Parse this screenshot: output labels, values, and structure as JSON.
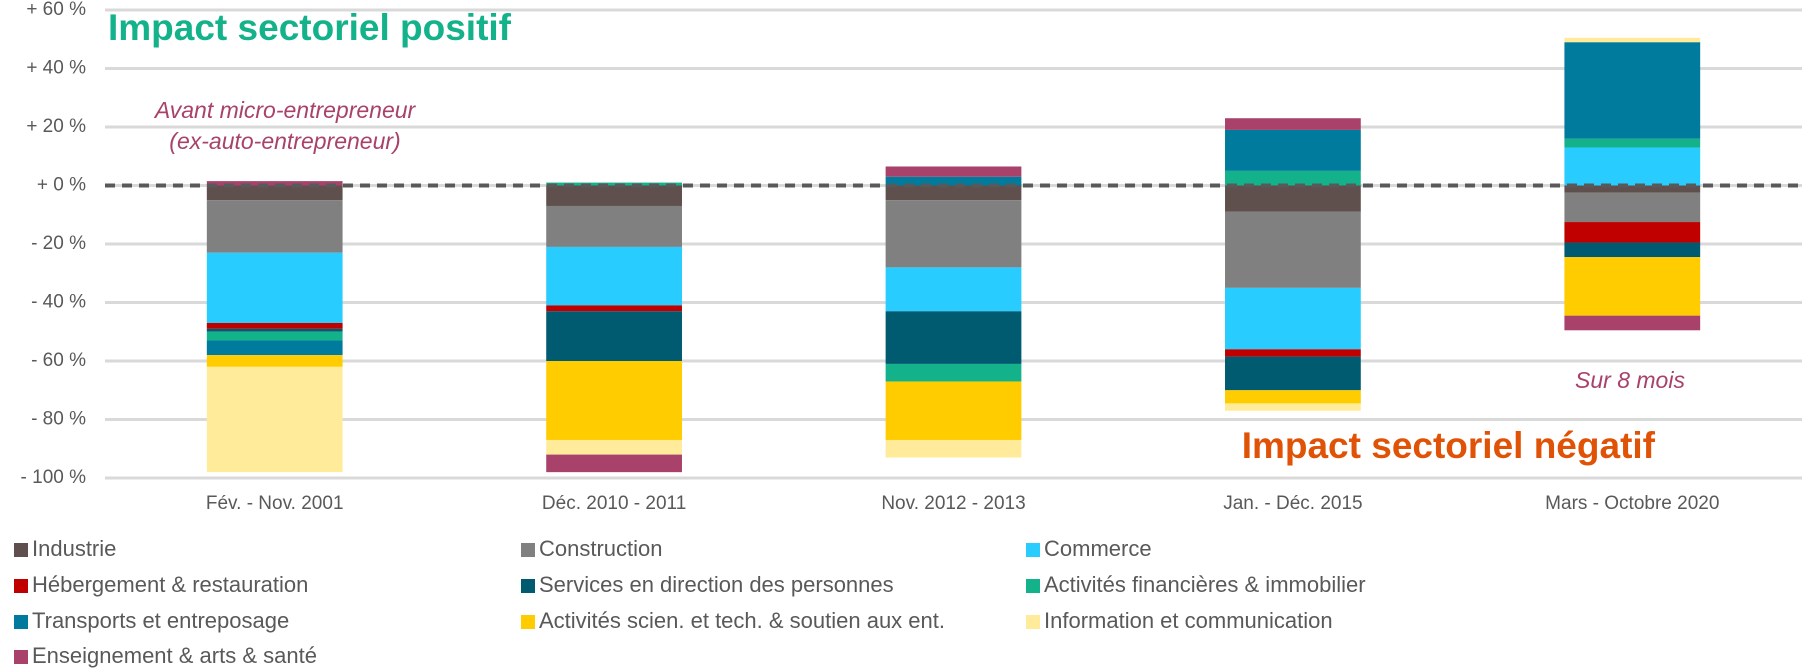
{
  "chart_data": {
    "type": "stacked_bar",
    "categories": [
      "Fév. - Nov. 2001",
      "Déc. 2010 - 2011",
      "Nov. 2012 - 2013",
      "Jan. - Déc. 2015",
      "Mars - Octobre 2020"
    ],
    "series": [
      {
        "name": "Industrie",
        "color": "#5f504d",
        "values": [
          -5,
          -7,
          -5,
          -9,
          -2.5
        ]
      },
      {
        "name": "Construction",
        "color": "#808080",
        "values": [
          -18,
          -14,
          -23,
          -26,
          -10
        ]
      },
      {
        "name": "Commerce",
        "color": "#29ccff",
        "values": [
          -24,
          -20,
          -15,
          -21,
          13
        ]
      },
      {
        "name": "Hébergement & restauration",
        "color": "#c00000",
        "values": [
          -2,
          -2,
          0,
          -2.5,
          -7
        ]
      },
      {
        "name": "Services en direction des personnes",
        "color": "#005a70",
        "values": [
          -1,
          -17,
          -18,
          -11.5,
          -5
        ]
      },
      {
        "name": "Activités financières & immobilier",
        "color": "#14b28a",
        "values": [
          -3,
          1,
          -6,
          5,
          3
        ]
      },
      {
        "name": "Transports et entreposage",
        "color": "#007b9e",
        "values": [
          -5,
          0,
          3,
          14,
          33
        ]
      },
      {
        "name": "Activités scien. et tech. & soutien aux ent.",
        "color": "#ffcc00",
        "values": [
          -4,
          -27,
          -20,
          -4.5,
          -20
        ]
      },
      {
        "name": "Information et communication",
        "color": "#ffeb99",
        "values": [
          -36,
          -5,
          -6,
          -2.5,
          1.5
        ]
      },
      {
        "name": "Enseignement & arts & santé",
        "color": "#a8426b",
        "values": [
          1.5,
          -6,
          3.5,
          4,
          -5
        ]
      }
    ],
    "ylim": [
      -100,
      60
    ],
    "yticks": [
      {
        "value": -100,
        "label": "- 100 %"
      },
      {
        "value": -80,
        "label": "- 80 %"
      },
      {
        "value": -60,
        "label": "- 60 %"
      },
      {
        "value": -40,
        "label": "- 40 %"
      },
      {
        "value": -20,
        "label": "- 20 %"
      },
      {
        "value": 0,
        "label": "+ 0 %"
      },
      {
        "value": 20,
        "label": "+ 20 %"
      },
      {
        "value": 40,
        "label": "+ 40 %"
      },
      {
        "value": 60,
        "label": "+ 60 %"
      }
    ],
    "grid": true,
    "annotations": [
      "Impact sectoriel positif",
      "Impact sectoriel négatif",
      "Avant micro-entrepreneur",
      "(ex-auto-entrepreneur)",
      "Sur 8 mois"
    ]
  }
}
